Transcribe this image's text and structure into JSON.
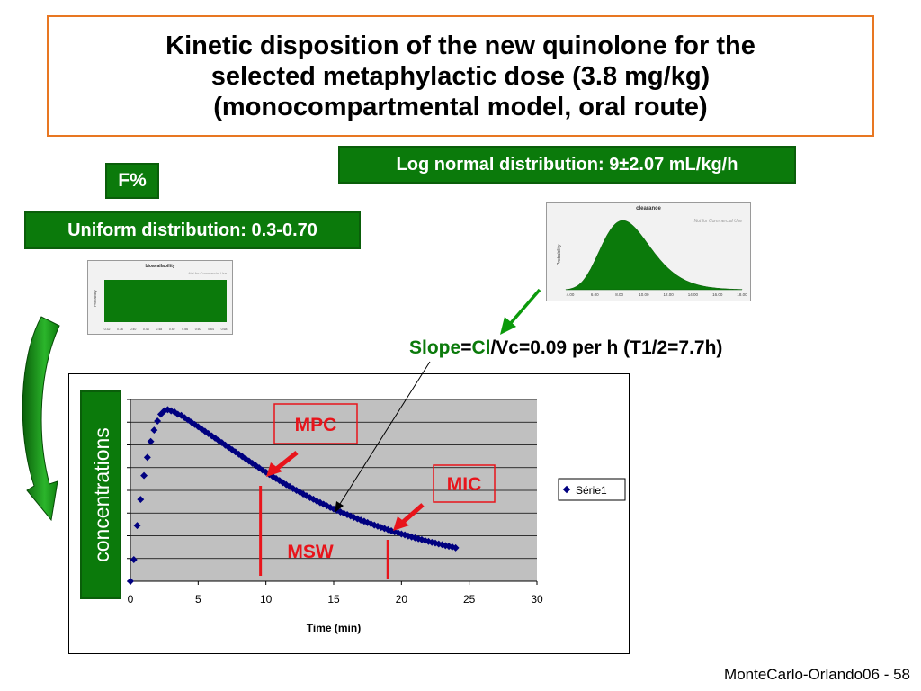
{
  "title": {
    "lines": [
      "Kinetic disposition of the new quinolone for the",
      "selected metaphylactic dose (3.8 mg/kg)",
      "(monocompartmental model, oral route)"
    ]
  },
  "labels": {
    "f_percent": "F%",
    "uniform": "Uniform distribution: 0.3-0.70",
    "lognormal": "Log normal distribution: 9±2.07 mL/kg/h"
  },
  "slope": {
    "part1": "Slope",
    "part2": "=",
    "part3": "Cl",
    "part4": "/Vc=0.09 per h (T1/2=7.7h)"
  },
  "thumbnails": {
    "uniform": {
      "title": "bioavailability",
      "ylabel": "Probability",
      "ticks": [
        "0.32",
        "0.36",
        "0.40",
        "0.44",
        "0.48",
        "0.52",
        "0.56",
        "0.60",
        "0.64",
        "0.68"
      ],
      "watermark": "Not for Commercial Use"
    },
    "clearance": {
      "title": "clearance",
      "ylabel": "Probability",
      "ticks": [
        "4.00",
        "6.00",
        "8.00",
        "10.00",
        "12.00",
        "14.00",
        "16.00",
        "18.00"
      ],
      "watermark": "Not for Commercial Use"
    }
  },
  "annotations": {
    "mpc": "MPC",
    "mic": "MIC",
    "msw": "MSW",
    "concentrations": "concentrations"
  },
  "colors": {
    "green": "#0b7a0b",
    "series": "#000080",
    "red": "#e8141b",
    "title_border": "#e87722",
    "plot_bg": "#c0c0c0"
  },
  "chart_data": {
    "type": "scatter",
    "xlabel": "Time (min)",
    "ylabel": "",
    "xlim": [
      0,
      30
    ],
    "xticks": [
      0,
      5,
      10,
      15,
      20,
      25,
      30
    ],
    "ylim": [
      0,
      8
    ],
    "grid": true,
    "legend": "right",
    "markers": {
      "mpc_time": 9.6,
      "mic_time": 19
    },
    "series": [
      {
        "name": "Série1",
        "marker": "diamond",
        "x": [
          0,
          0.25,
          0.5,
          0.75,
          1,
          1.25,
          1.5,
          1.75,
          2,
          2.25,
          2.5,
          2.75,
          3,
          3.25,
          3.5,
          3.75,
          4,
          4.25,
          4.5,
          4.75,
          5,
          5.25,
          5.5,
          5.75,
          6,
          6.25,
          6.5,
          6.75,
          7,
          7.25,
          7.5,
          7.75,
          8,
          8.25,
          8.5,
          8.75,
          9,
          9.25,
          9.5,
          9.75,
          10,
          10.25,
          10.5,
          10.75,
          11,
          11.25,
          11.5,
          11.75,
          12,
          12.25,
          12.5,
          12.75,
          13,
          13.25,
          13.5,
          13.75,
          14,
          14.25,
          14.5,
          14.75,
          15,
          15.25,
          15.5,
          15.75,
          16,
          16.25,
          16.5,
          16.75,
          17,
          17.25,
          17.5,
          17.75,
          18,
          18.25,
          18.5,
          18.75,
          19,
          19.25,
          19.5,
          19.75,
          20,
          20.25,
          20.5,
          20.75,
          21,
          21.25,
          21.5,
          21.75,
          22,
          22.25,
          22.5,
          22.75,
          23,
          23.25,
          23.5,
          23.75,
          24
        ],
        "y": [
          0,
          0.95,
          2.45,
          3.6,
          4.65,
          5.45,
          6.15,
          6.65,
          7.05,
          7.35,
          7.5,
          7.55,
          7.5,
          7.45,
          7.35,
          7.3,
          7.2,
          7.1,
          7.0,
          6.9,
          6.8,
          6.7,
          6.6,
          6.5,
          6.4,
          6.3,
          6.2,
          6.1,
          5.99,
          5.89,
          5.79,
          5.69,
          5.59,
          5.49,
          5.39,
          5.29,
          5.19,
          5.09,
          4.99,
          4.89,
          4.8,
          4.7,
          4.61,
          4.52,
          4.43,
          4.34,
          4.25,
          4.17,
          4.08,
          4.0,
          3.92,
          3.84,
          3.76,
          3.68,
          3.61,
          3.53,
          3.46,
          3.39,
          3.32,
          3.25,
          3.18,
          3.12,
          3.05,
          2.99,
          2.93,
          2.87,
          2.81,
          2.75,
          2.69,
          2.64,
          2.58,
          2.53,
          2.47,
          2.42,
          2.37,
          2.32,
          2.27,
          2.22,
          2.17,
          2.13,
          2.08,
          2.04,
          1.99,
          1.95,
          1.91,
          1.87,
          1.83,
          1.79,
          1.75,
          1.71,
          1.68,
          1.64,
          1.61,
          1.57,
          1.54,
          1.51,
          1.47
        ]
      }
    ]
  }
}
